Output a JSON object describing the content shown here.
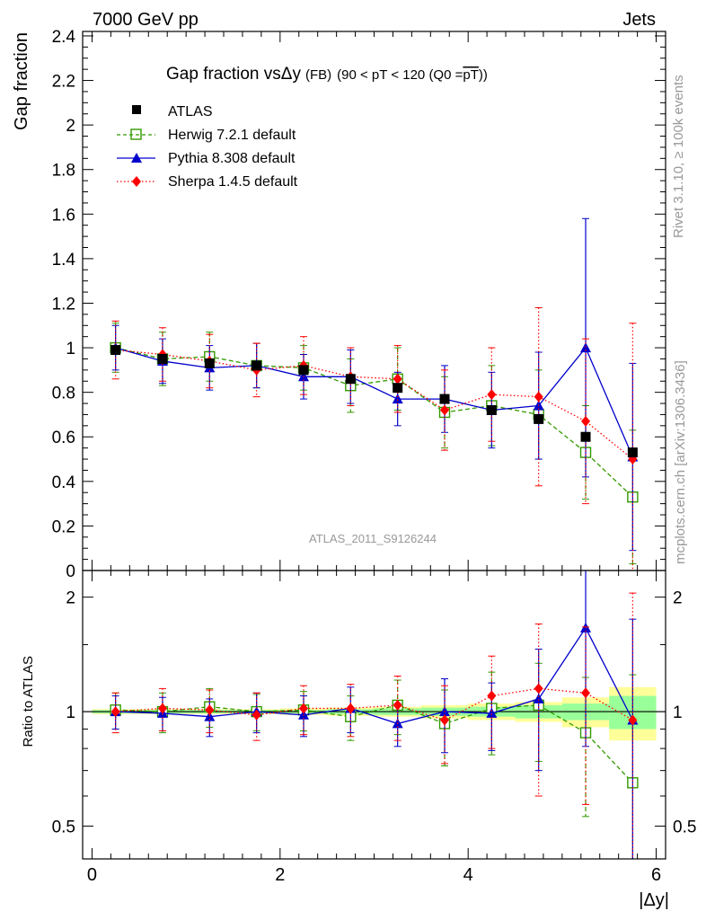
{
  "header": {
    "left": "7000 GeV pp",
    "right": "Jets"
  },
  "side_labels": {
    "rivet": "Rivet 3.1.10, ≥ 100k events",
    "mcplots": "mcplots.cern.ch [arXiv:1306.3436]"
  },
  "watermark": "ATLAS_2011_S9126244",
  "title": {
    "main": "Gap fraction vsΔy",
    "small": "(FB)",
    "range": "(90 < pT < 120 (Q0 =",
    "pt": "pT",
    "close": "))"
  },
  "colors": {
    "atlas": "#000000",
    "herwig": "#339900",
    "pythia": "#0000cc",
    "sherpa": "#ff0000",
    "band_inner": "#99ff99",
    "band_outer": "#ffff99"
  },
  "chart_data": [
    {
      "type": "scatter",
      "panel": "main",
      "title": "Gap fraction vsΔy (FB) (90 < pT < 120 (Q0 = pT))",
      "xlabel": "|Δy|",
      "ylabel": "Gap fraction",
      "xlim": [
        -0.1,
        6.1
      ],
      "ylim": [
        0,
        2.42
      ],
      "xticks": [
        0,
        2,
        4,
        6
      ],
      "yticks": [
        "0",
        "0.2",
        "0.4",
        "0.6",
        "0.8",
        "1",
        "1.2",
        "1.4",
        "1.6",
        "1.8",
        "2",
        "2.2",
        "2.4"
      ],
      "x": [
        0.25,
        0.75,
        1.25,
        1.75,
        2.25,
        2.75,
        3.25,
        3.75,
        4.25,
        4.75,
        5.25,
        5.75
      ],
      "series": [
        {
          "name": "ATLAS",
          "style": "data",
          "values": [
            0.99,
            0.95,
            0.93,
            0.92,
            0.9,
            0.86,
            0.82,
            0.77,
            0.72,
            0.68,
            0.6,
            0.53
          ],
          "err": [
            0.01,
            0.01,
            0.01,
            0.01,
            0.01,
            0.01,
            0.01,
            0.01,
            0.01,
            0.01,
            0.01,
            0.02
          ]
        },
        {
          "name": "Herwig 7.2.1 default",
          "style": "dashed",
          "values": [
            1.0,
            0.95,
            0.96,
            0.92,
            0.91,
            0.83,
            0.86,
            0.71,
            0.74,
            0.7,
            0.53,
            0.33
          ],
          "err": [
            0.11,
            0.12,
            0.11,
            0.1,
            0.1,
            0.12,
            0.14,
            0.16,
            0.18,
            0.2,
            0.21,
            0.3
          ]
        },
        {
          "name": "Pythia 8.308 default",
          "style": "solid",
          "values": [
            1.0,
            0.94,
            0.91,
            0.92,
            0.87,
            0.87,
            0.77,
            0.77,
            0.72,
            0.74,
            1.0,
            0.51
          ],
          "err": [
            0.1,
            0.1,
            0.1,
            0.1,
            0.1,
            0.12,
            0.12,
            0.15,
            0.17,
            0.24,
            0.58,
            0.42
          ]
        },
        {
          "name": "Sherpa 1.4.5 default",
          "style": "dotted",
          "values": [
            0.99,
            0.97,
            0.94,
            0.9,
            0.92,
            0.87,
            0.86,
            0.72,
            0.79,
            0.78,
            0.67,
            0.5
          ],
          "err": [
            0.13,
            0.12,
            0.12,
            0.12,
            0.13,
            0.13,
            0.15,
            0.18,
            0.21,
            0.4,
            0.37,
            0.61
          ]
        }
      ]
    },
    {
      "type": "scatter",
      "panel": "ratio",
      "xlabel": "|Δy|",
      "ylabel": "Ratio to ATLAS",
      "xlim": [
        -0.1,
        6.1
      ],
      "ylim": [
        0.41,
        2.35
      ],
      "yscale": "log",
      "yticks": [
        "0.5",
        "1",
        "2"
      ],
      "x": [
        0.25,
        0.75,
        1.25,
        1.75,
        2.25,
        2.75,
        3.25,
        3.75,
        4.25,
        4.75,
        5.25,
        5.75
      ],
      "band_inner": [
        0.01,
        0.01,
        0.01,
        0.01,
        0.01,
        0.015,
        0.02,
        0.025,
        0.03,
        0.04,
        0.05,
        0.1
      ],
      "band_outer": [
        0.015,
        0.015,
        0.015,
        0.015,
        0.02,
        0.025,
        0.03,
        0.04,
        0.05,
        0.06,
        0.09,
        0.16
      ],
      "series": [
        {
          "name": "Herwig 7.2.1 default",
          "style": "dashed",
          "values": [
            1.01,
            1.0,
            1.03,
            1.0,
            1.01,
            0.97,
            1.04,
            0.93,
            1.02,
            1.04,
            0.88,
            0.65
          ],
          "err": [
            0.11,
            0.12,
            0.12,
            0.11,
            0.12,
            0.13,
            0.17,
            0.21,
            0.25,
            0.3,
            0.35,
            0.6
          ]
        },
        {
          "name": "Pythia 8.308 default",
          "style": "solid",
          "values": [
            1.0,
            0.99,
            0.97,
            1.0,
            0.98,
            1.02,
            0.93,
            1.0,
            0.99,
            1.08,
            1.66,
            0.95
          ],
          "err": [
            0.1,
            0.1,
            0.11,
            0.12,
            0.12,
            0.14,
            0.12,
            0.22,
            0.2,
            0.38,
            0.85,
            0.8
          ]
        },
        {
          "name": "Sherpa 1.4.5 default",
          "style": "dotted",
          "values": [
            1.0,
            1.02,
            1.01,
            0.98,
            1.02,
            1.02,
            1.04,
            0.95,
            1.1,
            1.15,
            1.12,
            0.95
          ],
          "err": [
            0.12,
            0.13,
            0.13,
            0.14,
            0.15,
            0.16,
            0.2,
            0.22,
            0.3,
            0.55,
            0.55,
            1.1
          ]
        }
      ]
    }
  ]
}
